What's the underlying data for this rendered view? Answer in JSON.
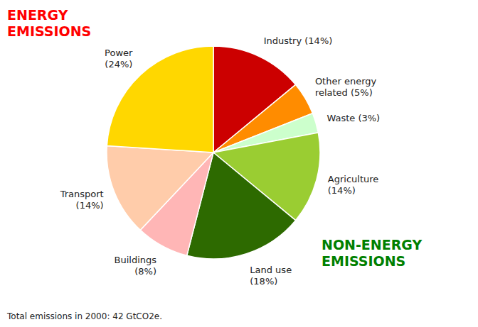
{
  "chart_data": {
    "type": "pie",
    "categories": [
      "Industry (14%)",
      "Other energy\nrelated (5%)",
      "Waste (3%)",
      "Agriculture\n(14%)",
      "Land use\n(18%)",
      "Buildings\n(8%)",
      "Transport\n(14%)",
      "Power\n(24%)"
    ],
    "values": [
      14,
      5,
      3,
      14,
      18,
      8,
      14,
      24
    ],
    "colors": [
      "#CC0000",
      "#FF8C00",
      "#CCFFCC",
      "#9ACD32",
      "#2D6A00",
      "#FFB6B6",
      "#FFCCAA",
      "#FFD700"
    ],
    "annotations": [
      {
        "text": "ENERGY\nEMISSIONS",
        "color": "#FF0000"
      },
      {
        "text": "NON-ENERGY\nEMISSIONS",
        "color": "#008000"
      },
      {
        "text": "Total emissions in 2000: 42 GtCO2e."
      }
    ]
  }
}
